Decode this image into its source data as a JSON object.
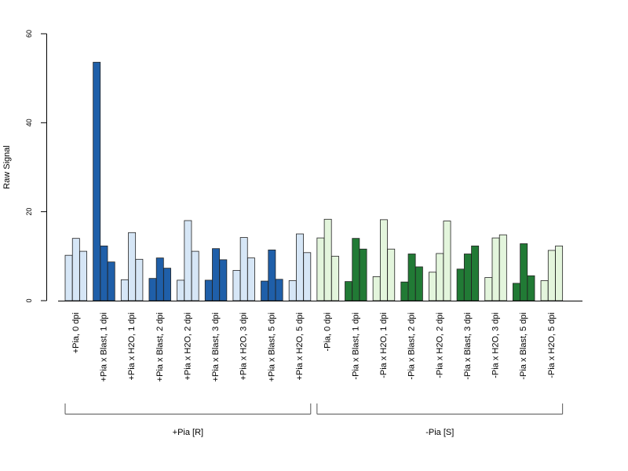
{
  "chart_data": {
    "type": "bar",
    "title": "",
    "ylabel": "Raw Signal",
    "ylim": [
      0,
      60
    ],
    "y_ticks": [
      0,
      20,
      40,
      60
    ],
    "bars_per_category": 3,
    "categories": [
      "+Pia, 0 dpi",
      "+Pia x Blast, 1 dpi",
      "+Pia x H2O, 1 dpi",
      "+Pia x Blast, 2 dpi",
      "+Pia x H2O, 2 dpi",
      "+Pia x Blast, 3 dpi",
      "+Pia x H2O, 3 dpi",
      "+Pia x Blast, 5 dpi",
      "+Pia x H2O, 5 dpi",
      "-Pia, 0 dpi",
      "-Pia x Blast, 1 dpi",
      "-Pia x H2O, 1 dpi",
      "-Pia x Blast, 2 dpi",
      "-Pia x H2O, 2 dpi",
      "-Pia x Blast, 3 dpi",
      "-Pia x H2O, 3 dpi",
      "-Pia x Blast, 5 dpi",
      "-Pia x H2O, 5 dpi"
    ],
    "values": [
      [
        10.2,
        14.0,
        11.1
      ],
      [
        53.6,
        12.3,
        8.7
      ],
      [
        4.7,
        15.3,
        9.3
      ],
      [
        5.0,
        9.6,
        7.3
      ],
      [
        4.6,
        18.0,
        11.1
      ],
      [
        4.6,
        11.7,
        9.2
      ],
      [
        6.8,
        14.2,
        9.6
      ],
      [
        4.4,
        11.4,
        4.8
      ],
      [
        4.5,
        15.0,
        10.8
      ],
      [
        14.1,
        18.3,
        10.0
      ],
      [
        4.3,
        14.0,
        11.6
      ],
      [
        5.4,
        18.2,
        11.6
      ],
      [
        4.2,
        10.5,
        7.6
      ],
      [
        6.4,
        10.6,
        17.9
      ],
      [
        7.1,
        10.5,
        12.3
      ],
      [
        5.2,
        14.1,
        14.8
      ],
      [
        3.9,
        12.8,
        5.6
      ],
      [
        4.5,
        11.3,
        12.3
      ]
    ],
    "category_colors": [
      "#d6e6f6",
      "#1f5fa9",
      "#d6e6f6",
      "#1f5fa9",
      "#d6e6f6",
      "#1f5fa9",
      "#d6e6f6",
      "#1f5fa9",
      "#d6e6f6",
      "#e3f5dc",
      "#217a35",
      "#e3f5dc",
      "#217a35",
      "#e3f5dc",
      "#217a35",
      "#e3f5dc",
      "#217a35",
      "#e3f5dc"
    ],
    "groups": [
      {
        "label": "+Pia [R]",
        "from": 0,
        "to": 8
      },
      {
        "label": "-Pia [S]",
        "from": 9,
        "to": 17
      }
    ],
    "grid": false,
    "legend": "none"
  }
}
